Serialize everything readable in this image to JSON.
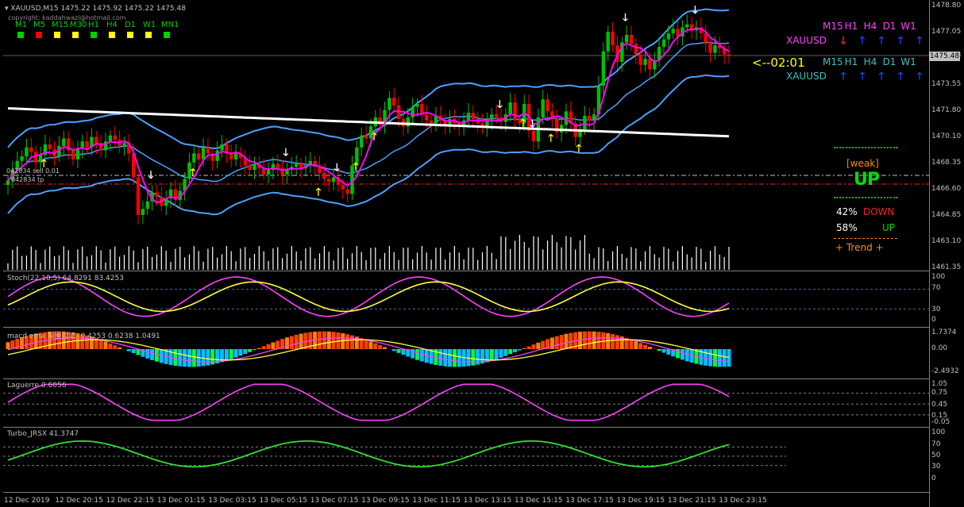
{
  "header": {
    "symbol_line": "XAUUSD,M15  1475.22 1475.92 1475.22 1475.48",
    "copyright": "copyright: kaddahwazi@hotmail.com",
    "order_sell": "042834 sell 0.01",
    "order_tp": "042834 tp"
  },
  "mtf": {
    "labels": [
      "M1",
      "M5",
      "M15",
      "M30",
      "H1",
      "H4",
      "D1",
      "W1",
      "MN1"
    ],
    "colors": [
      "#00d000",
      "#ff0000",
      "#ffff00",
      "#ffff00",
      "#00d000",
      "#ffff00",
      "#ffff00",
      "#ffff00",
      "#00d000"
    ]
  },
  "panel_right": {
    "tf_labels": [
      "M15",
      "H1",
      "H4",
      "D1",
      "W1"
    ],
    "row1_symbol": "XAUUSD",
    "row1_arrows": [
      "🡓",
      "🡑",
      "🡑",
      "🡑",
      "🡑"
    ],
    "row1_arrow_colors": [
      "#ff2020",
      "#2040ff",
      "#2040ff",
      "#2040ff",
      "#2040ff"
    ],
    "countdown": "<--02:01",
    "row2_symbol": "XAUUSD",
    "row2_arrows": [
      "🡑",
      "🡑",
      "🡑",
      "🡑",
      "🡑"
    ],
    "row2_arrow_colors": [
      "#2040ff",
      "#2040ff",
      "#2040ff",
      "#2040ff",
      "#2040ff"
    ],
    "strength": "[weak]",
    "direction": "UP",
    "down_pct": "42%",
    "down_label": "DOWN",
    "up_pct": "58%",
    "up_label": "UP",
    "trend": "+  Trend  +"
  },
  "price_box": "1475.48",
  "price_axis": [
    "1478.80",
    "1477.05",
    "1475.48",
    "1473.55",
    "1471.80",
    "1470.10",
    "1468.35",
    "1466.60",
    "1464.85",
    "1463.10",
    "1461.35"
  ],
  "stoch": {
    "title": "Stoch(22,10,5) 64.8291 83.4253",
    "levels": [
      "100",
      "70",
      "30",
      "0"
    ]
  },
  "macd": {
    "title": "macd ema 双重过滤 -0.4253 0.6238 1.0491",
    "levels": [
      "1.7374",
      "0.00",
      "-2.4932"
    ]
  },
  "laguerre": {
    "title": "Laguerre 0.6056",
    "levels": [
      "1.05",
      "0.75",
      "0.45",
      "0.15",
      "-0.05"
    ]
  },
  "turbo": {
    "title": "Turbo_JRSX 41.3747",
    "levels": [
      "100",
      "70",
      "50",
      "30",
      "0"
    ]
  },
  "time_axis": [
    "12 Dec 2019",
    "12 Dec 20:15",
    "12 Dec 22:15",
    "13 Dec 01:15",
    "13 Dec 03:15",
    "13 Dec 05:15",
    "13 Dec 07:15",
    "13 Dec 09:15",
    "13 Dec 11:15",
    "13 Dec 13:15",
    "13 Dec 15:15",
    "13 Dec 17:15",
    "13 Dec 19:15",
    "13 Dec 21:15",
    "13 Dec 23:15"
  ],
  "colors": {
    "bull": "#00c000",
    "bear": "#ff0000",
    "band": "#4aa0ff",
    "ma_slow": "#ffffff",
    "ma_fast": "#ff00ff",
    "stoch_main": "#ff40ff",
    "stoch_signal": "#ffff40",
    "laguerre": "#ff40ff",
    "turbo": "#30e030",
    "volume": "#ffffff"
  },
  "chart_data": {
    "type": "candlestick",
    "symbol": "XAUUSD",
    "timeframe": "M15",
    "price_range": [
      1461.35,
      1478.8
    ],
    "last_price": 1475.48,
    "close": [
      1467.2,
      1467.9,
      1468.5,
      1468.8,
      1469.4,
      1469.1,
      1468.4,
      1468.9,
      1469.6,
      1469.3,
      1468.8,
      1469.5,
      1470.0,
      1469.2,
      1468.6,
      1469.3,
      1469.8,
      1469.4,
      1470.1,
      1469.6,
      1469.2,
      1469.8,
      1470.2,
      1469.9,
      1469.5,
      1469.7,
      1469.0,
      1467.4,
      1464.9,
      1465.3,
      1465.8,
      1466.4,
      1466.1,
      1465.5,
      1466.0,
      1466.6,
      1465.9,
      1466.5,
      1467.3,
      1468.4,
      1469.0,
      1468.6,
      1469.4,
      1469.0,
      1468.5,
      1469.2,
      1469.6,
      1469.0,
      1468.6,
      1469.0,
      1468.7,
      1468.2,
      1467.9,
      1468.3,
      1468.0,
      1467.6,
      1467.9,
      1468.3,
      1468.0,
      1467.6,
      1467.9,
      1468.1,
      1468.3,
      1468.0,
      1468.2,
      1468.5,
      1468.2,
      1467.7,
      1467.3,
      1467.1,
      1467.4,
      1466.9,
      1466.6,
      1466.3,
      1468.2,
      1469.4,
      1470.2,
      1470.0,
      1470.8,
      1471.4,
      1470.9,
      1471.9,
      1472.7,
      1472.2,
      1471.3,
      1470.8,
      1471.4,
      1472.1,
      1472.3,
      1471.6,
      1471.2,
      1471.0,
      1471.5,
      1471.2,
      1470.9,
      1471.3,
      1471.0,
      1470.8,
      1471.2,
      1471.7,
      1471.3,
      1471.0,
      1470.7,
      1471.2,
      1471.6,
      1471.4,
      1471.1,
      1471.6,
      1472.4,
      1471.2,
      1471.0,
      1472.3,
      1470.5,
      1469.8,
      1471.4,
      1472.6,
      1471.8,
      1471.3,
      1470.4,
      1470.9,
      1471.8,
      1471.0,
      1470.1,
      1470.6,
      1471.5,
      1471.2,
      1471.6,
      1473.5,
      1475.8,
      1477.1,
      1476.2,
      1475.1,
      1476.4,
      1476.9,
      1476.3,
      1475.6,
      1474.9,
      1475.3,
      1474.6,
      1475.2,
      1476.1,
      1476.6,
      1477.0,
      1477.3,
      1476.8,
      1477.4,
      1477.6,
      1477.2,
      1477.4,
      1477.0,
      1476.3,
      1475.7,
      1476.2,
      1476.0,
      1475.6,
      1475.48
    ],
    "annotations": [
      "sell/buy arrows",
      "Bollinger bands",
      "moving averages"
    ]
  }
}
